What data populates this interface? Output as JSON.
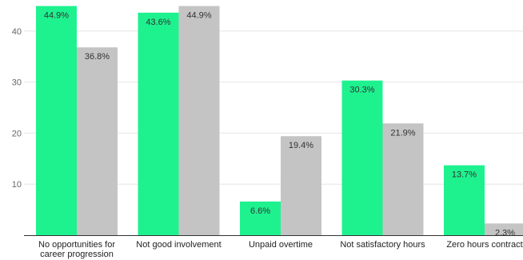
{
  "chart_data": {
    "type": "bar",
    "categories": [
      [
        "No opportunities for",
        "career progression"
      ],
      [
        "Not good involvement"
      ],
      [
        "Unpaid overtime"
      ],
      [
        "Not satisfactory hours"
      ],
      [
        "Zero hours contract"
      ]
    ],
    "series": [
      {
        "color": "#1ef28f",
        "values": [
          44.9,
          43.6,
          6.6,
          30.3,
          13.7
        ],
        "labels": [
          "44.9%",
          "43.6%",
          "6.6%",
          "30.3%",
          "13.7%"
        ]
      },
      {
        "color": "#c4c4c4",
        "values": [
          36.8,
          44.9,
          19.4,
          21.9,
          2.3
        ],
        "labels": [
          "36.8%",
          "44.9%",
          "19.4%",
          "21.9%",
          "2.3%"
        ]
      }
    ],
    "y_ticks": [
      10,
      20,
      30,
      40
    ],
    "ylim": [
      0,
      45
    ],
    "grid": true
  }
}
